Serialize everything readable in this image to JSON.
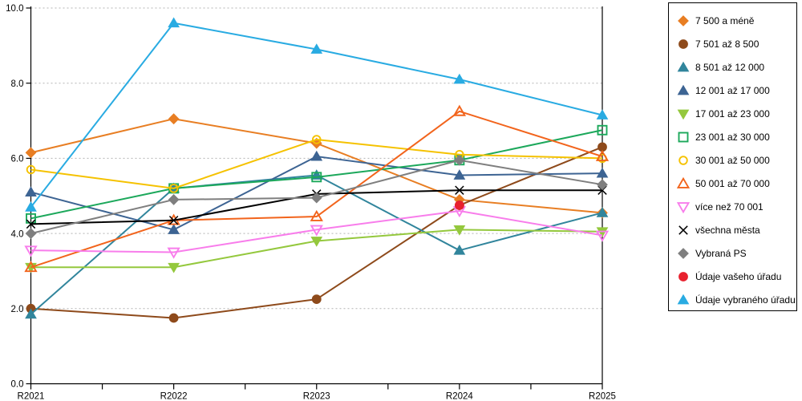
{
  "chart_data": {
    "type": "line",
    "title": "",
    "xlabel": "",
    "ylabel": "",
    "x_categories": [
      "R2021",
      "R2022",
      "R2023",
      "R2024",
      "R2025"
    ],
    "y_ticks": [
      "0.0",
      "2.0",
      "4.0",
      "6.0",
      "8.0",
      "10.0"
    ],
    "ylim": [
      0,
      10
    ],
    "grid": "horizontal dotted gridlines at 2.0 steps",
    "legend_position": "right",
    "series": [
      {
        "name": "7 500 a méně",
        "color": "#E87E23",
        "marker": "diamond",
        "fill": true,
        "values": [
          6.15,
          7.05,
          6.4,
          4.9,
          4.55
        ]
      },
      {
        "name": "7 501 až 8 500",
        "color": "#8E4A1B",
        "marker": "circle",
        "fill": true,
        "values": [
          2.0,
          1.75,
          2.25,
          4.75,
          6.3
        ]
      },
      {
        "name": "8 501 až 12 000",
        "color": "#31859C",
        "marker": "triangle-up",
        "fill": true,
        "values": [
          1.85,
          5.2,
          5.55,
          3.55,
          4.55
        ]
      },
      {
        "name": "12 001 až 17 000",
        "color": "#3D6493",
        "marker": "triangle-up",
        "fill": true,
        "values": [
          5.1,
          4.1,
          6.05,
          5.55,
          5.6
        ]
      },
      {
        "name": "17 001 až 23 000",
        "color": "#94C83D",
        "marker": "triangle-down",
        "fill": true,
        "values": [
          3.1,
          3.1,
          3.8,
          4.1,
          4.05
        ]
      },
      {
        "name": "23 001 až 30 000",
        "color": "#1CA85B",
        "marker": "square",
        "fill": false,
        "values": [
          4.4,
          5.2,
          5.5,
          5.95,
          6.75
        ]
      },
      {
        "name": "30 001 až 50 000",
        "color": "#F5C201",
        "marker": "circle",
        "fill": false,
        "values": [
          5.7,
          5.2,
          6.5,
          6.1,
          6.0
        ]
      },
      {
        "name": "50 001 až 70 000",
        "color": "#F2641C",
        "marker": "triangle-up",
        "fill": false,
        "values": [
          3.1,
          4.35,
          4.45,
          7.25,
          6.05
        ]
      },
      {
        "name": "více než 70 001",
        "color": "#F87DEB",
        "marker": "triangle-down",
        "fill": false,
        "values": [
          3.55,
          3.5,
          4.1,
          4.6,
          3.95
        ]
      },
      {
        "name": "všechna města",
        "color": "#000000",
        "marker": "x",
        "fill": false,
        "values": [
          4.25,
          4.35,
          5.05,
          5.15,
          5.15
        ]
      },
      {
        "name": "Vybraná PS",
        "color": "#7F7F7F",
        "marker": "diamond",
        "fill": true,
        "values": [
          4.0,
          4.9,
          4.95,
          5.95,
          5.3
        ]
      },
      {
        "name": "Údaje vašeho úřadu",
        "color": "#E8212E",
        "marker": "circle",
        "fill": true,
        "values": [
          null,
          null,
          null,
          4.75,
          null
        ]
      },
      {
        "name": "Údaje vybraného úřadu",
        "color": "#29ABE2",
        "marker": "triangle-up",
        "fill": true,
        "values": [
          4.7,
          9.6,
          8.9,
          8.1,
          7.15
        ]
      }
    ]
  }
}
